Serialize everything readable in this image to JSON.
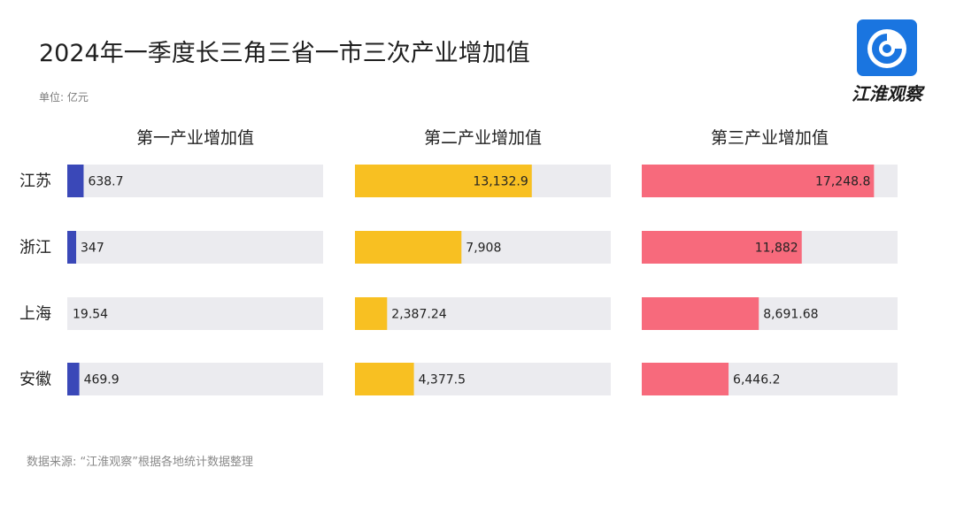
{
  "header": {
    "title": "2024年一季度长三角三省一市三次产业增加值",
    "unit": "单位: 亿元"
  },
  "footer": {
    "source": "数据来源: “江淮观察”根据各地统计数据整理"
  },
  "brand": {
    "logo_text": "江淮观察",
    "logo_icon": "circular-swirl-logo-icon",
    "logo_color": "#1a75e0"
  },
  "chart_data": {
    "type": "bar",
    "orientation": "horizontal",
    "title": "2024年一季度长三角三省一市三次产业增加值",
    "unit": "亿元",
    "categories": [
      "江苏",
      "浙江",
      "上海",
      "安徽"
    ],
    "series": [
      {
        "name": "第一产业增加值",
        "color": "#3a48b8",
        "values": [
          638.7,
          347,
          19.54,
          469.9
        ],
        "labels": [
          "638.7",
          "347",
          "19.54",
          "469.9"
        ],
        "xlim": [
          0,
          10000
        ]
      },
      {
        "name": "第二产业增加值",
        "color": "#f8c022",
        "values": [
          13132.9,
          7908,
          2387.24,
          4377.5
        ],
        "labels": [
          "13,132.9",
          "7,908",
          "2,387.24",
          "4,377.5"
        ],
        "xlim": [
          0,
          19000
        ]
      },
      {
        "name": "第三产业增加值",
        "color": "#f76a7c",
        "values": [
          17248.8,
          11882,
          8691.68,
          6446.2
        ],
        "labels": [
          "17,248.8",
          "11,882",
          "8,691.68",
          "6,446.2"
        ],
        "xlim": [
          0,
          19000
        ]
      }
    ],
    "track_color": "#ebebef",
    "grid": false,
    "legend": "none"
  }
}
